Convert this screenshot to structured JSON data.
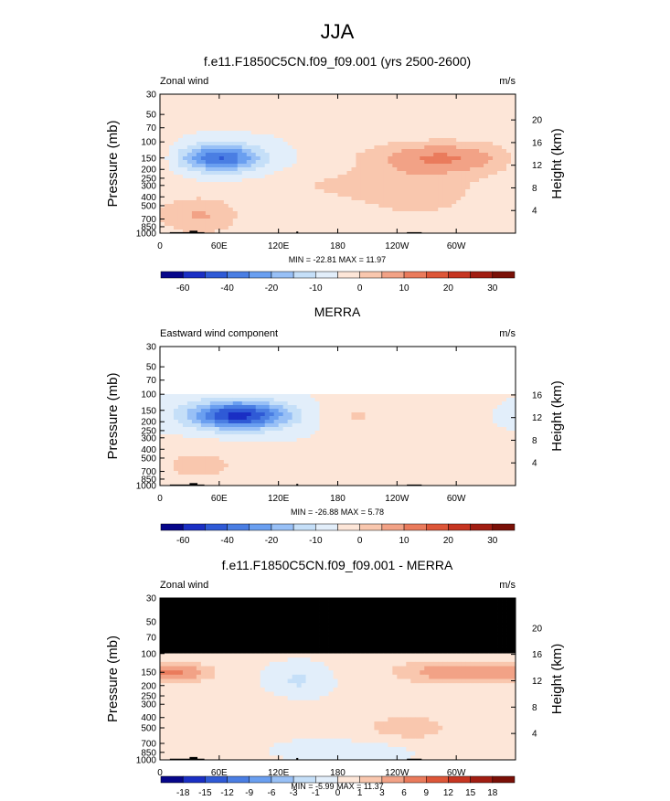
{
  "figure_title": "JJA",
  "chart_data": [
    {
      "type": "heatmap",
      "title": "f.e11.F1850C5CN.f09_f09.001 (yrs 2500-2600)",
      "left_label": "Zonal wind",
      "right_label": "m/s",
      "ylabel": "Pressure (mb)",
      "ylabel_right": "Height (km)",
      "x_tick_labels": [
        "0",
        "60E",
        "120E",
        "180",
        "120W",
        "60W"
      ],
      "y_tick_labels": [
        "30",
        "50",
        "70",
        "100",
        "150",
        "200",
        "250",
        "300",
        "400",
        "500",
        "700",
        "850",
        "1000"
      ],
      "height_tick_labels": [
        "20",
        "16",
        "12",
        "8",
        "4"
      ],
      "stats": "MIN = -22.81  MAX = 11.97",
      "colorbar_labels": [
        "-60",
        "-40",
        "-20",
        "-10",
        "0",
        "10",
        "20",
        "30"
      ],
      "colorbar_colors": [
        "#06068a",
        "#1a2fc4",
        "#2f5ad6",
        "#4a7ee3",
        "#6a9ff0",
        "#98c0f6",
        "#c5dff8",
        "#e2eefa",
        "#fde6d8",
        "#f9c7ae",
        "#f2a286",
        "#ea7b5c",
        "#dd5638",
        "#c63521",
        "#a11d12",
        "#7a1007"
      ],
      "value_range": [
        -22.81,
        11.97
      ],
      "features": [
        {
          "cx": 60,
          "cp": 150,
          "rx": 30,
          "rp": 0.24,
          "amp": -21
        },
        {
          "cx": 285,
          "cp": 150,
          "rx": 55,
          "rp": 0.3,
          "amp": 12
        },
        {
          "cx": 40,
          "cp": 650,
          "rx": 30,
          "rp": 0.35,
          "amp": 8
        },
        {
          "cx": 200,
          "cp": 300,
          "rx": 60,
          "rp": 0.25,
          "amp": 4
        },
        {
          "cx": 260,
          "cp": 400,
          "rx": 50,
          "rp": 0.45,
          "amp": 5
        }
      ]
    },
    {
      "type": "heatmap",
      "title": "MERRA",
      "left_label": "Eastward wind component",
      "right_label": "m/s",
      "ylabel": "Pressure (mb)",
      "ylabel_right": "Height (km)",
      "x_tick_labels": [
        "0",
        "60E",
        "120E",
        "180",
        "120W",
        "60W"
      ],
      "y_tick_labels": [
        "30",
        "50",
        "70",
        "100",
        "150",
        "200",
        "250",
        "300",
        "400",
        "500",
        "700",
        "850",
        "1000"
      ],
      "height_tick_labels": [
        "16",
        "12",
        "8",
        "4"
      ],
      "stats": "MIN = -26.88  MAX =   5.78",
      "colorbar_labels": [
        "-60",
        "-40",
        "-20",
        "-10",
        "0",
        "10",
        "20",
        "30"
      ],
      "colorbar_colors": [
        "#06068a",
        "#1a2fc4",
        "#2f5ad6",
        "#4a7ee3",
        "#6a9ff0",
        "#98c0f6",
        "#c5dff8",
        "#e2eefa",
        "#fde6d8",
        "#f9c7ae",
        "#f2a286",
        "#ea7b5c",
        "#dd5638",
        "#c63521",
        "#a11d12",
        "#7a1007"
      ],
      "value_range": [
        -26.88,
        5.78
      ],
      "data_top_mb": 100,
      "features": [
        {
          "cx": 80,
          "cp": 170,
          "rx": 35,
          "rp": 0.25,
          "amp": -26
        },
        {
          "cx": 200,
          "cp": 170,
          "rx": 25,
          "rp": 0.25,
          "amp": 4
        },
        {
          "cx": 40,
          "cp": 600,
          "rx": 35,
          "rp": 0.35,
          "amp": 5
        }
      ]
    },
    {
      "type": "heatmap",
      "title": "f.e11.F1850C5CN.f09_f09.001 - MERRA",
      "left_label": "Zonal wind",
      "right_label": "m/s",
      "ylabel": "Pressure (mb)",
      "ylabel_right": "Height (km)",
      "x_tick_labels": [
        "0",
        "60E",
        "120E",
        "180",
        "120W",
        "60W"
      ],
      "y_tick_labels": [
        "30",
        "50",
        "70",
        "100",
        "150",
        "200",
        "250",
        "300",
        "400",
        "500",
        "700",
        "850",
        "1000"
      ],
      "height_tick_labels": [
        "20",
        "16",
        "12",
        "8",
        "4"
      ],
      "stats": "MIN =  -5.99  MAX =  11.37",
      "colorbar_labels": [
        "-18",
        "-15",
        "-12",
        "-9",
        "-6",
        "-3",
        "-1",
        "0",
        "1",
        "3",
        "6",
        "9",
        "12",
        "15",
        "18"
      ],
      "colorbar_colors": [
        "#06068a",
        "#1a2fc4",
        "#2f5ad6",
        "#4a7ee3",
        "#6a9ff0",
        "#98c0f6",
        "#c5dff8",
        "#e2eefa",
        "#fde6d8",
        "#f9c7ae",
        "#f2a286",
        "#ea7b5c",
        "#dd5638",
        "#c63521",
        "#a11d12",
        "#7a1007"
      ],
      "value_range": [
        -5.99,
        11.37
      ],
      "data_top_mb": 100,
      "features": [
        {
          "cx": 20,
          "cp": 150,
          "rx": 25,
          "rp": 0.15,
          "amp": 10
        },
        {
          "cx": 300,
          "cp": 150,
          "rx": 45,
          "rp": 0.18,
          "amp": 11
        },
        {
          "cx": 140,
          "cp": 180,
          "rx": 18,
          "rp": 0.2,
          "amp": -5
        },
        {
          "cx": 250,
          "cp": 500,
          "rx": 45,
          "rp": 0.3,
          "amp": 5
        },
        {
          "cx": 80,
          "cp": 350,
          "rx": 30,
          "rp": 0.25,
          "amp": 3
        },
        {
          "cx": 200,
          "cp": 800,
          "rx": 40,
          "rp": 0.15,
          "amp": -4
        }
      ]
    }
  ]
}
